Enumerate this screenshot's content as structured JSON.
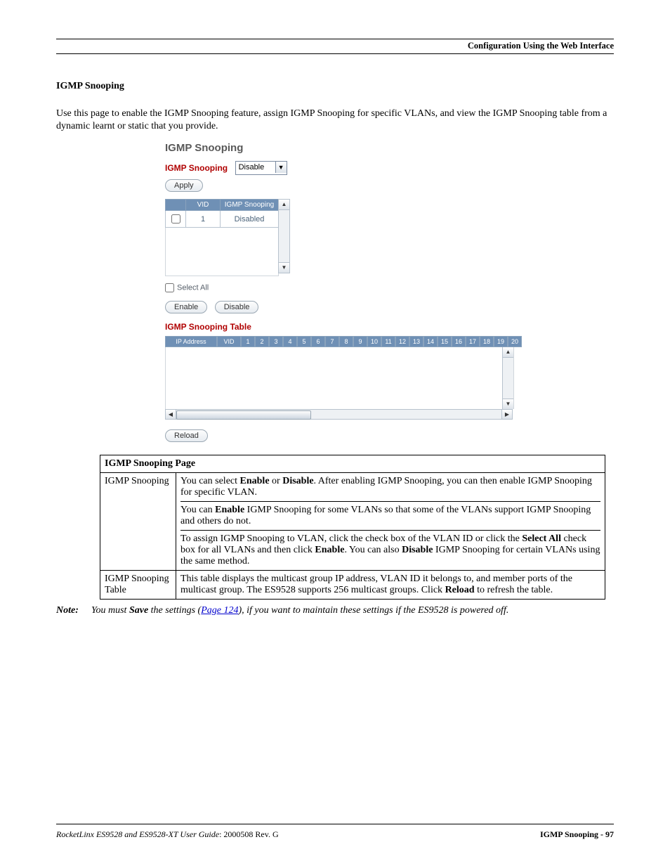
{
  "header": {
    "running": "Configuration Using the Web Interface"
  },
  "section": {
    "title": "IGMP Snooping",
    "intro": "Use this page to enable the IGMP Snooping feature, assign IGMP Snooping for specific VLANs, and view the IGMP Snooping table from a dynamic learnt or static that you provide."
  },
  "shot": {
    "title": "IGMP Snooping",
    "igmp_label": "IGMP Snooping",
    "dropdown_value": "Disable",
    "apply": "Apply",
    "cols": {
      "vid": "VID",
      "snoop": "IGMP Snooping"
    },
    "row": {
      "vid": "1",
      "state": "Disabled"
    },
    "select_all": "Select All",
    "enable": "Enable",
    "disable": "Disable",
    "table_title": "IGMP Snooping Table",
    "ip": "IP Address",
    "vid": "VID",
    "ports": [
      "1",
      "2",
      "3",
      "4",
      "5",
      "6",
      "7",
      "8",
      "9",
      "10",
      "11",
      "12",
      "13",
      "14",
      "15",
      "16",
      "17",
      "18",
      "19",
      "20"
    ],
    "reload": "Reload"
  },
  "desc": {
    "title": "IGMP Snooping Page",
    "rows": [
      {
        "name": "IGMP Snooping",
        "p1a": "You can select ",
        "p1b": "Enable",
        "p1c": " or ",
        "p1d": "Disable",
        "p1e": ". After enabling IGMP Snooping, you can then enable IGMP Snooping for specific VLAN.",
        "p2a": "You can ",
        "p2b": "Enable",
        "p2c": " IGMP Snooping for some VLANs so that some of the VLANs support IGMP Snooping and others do not.",
        "p3a": "To assign IGMP Snooping to VLAN, click the check box of the VLAN ID or click the ",
        "p3b": "Select All",
        "p3c": " check box for all VLANs and then click ",
        "p3d": "Enable",
        "p3e": ". You can also ",
        "p3f": "Disable",
        "p3g": " IGMP Snooping for certain VLANs using the same method."
      },
      {
        "name": "IGMP Snooping Table",
        "p1a": "This table displays the multicast group IP address, VLAN ID it belongs to, and member ports of the multicast group. The ES9528 supports 256 multicast groups. Click ",
        "p1b": "Reload",
        "p1c": " to refresh the table."
      }
    ]
  },
  "note": {
    "label": "Note:",
    "a": "You must ",
    "b": "Save",
    "c": " the settings (",
    "link": "Page 124",
    "d": "), if you want to maintain these settings if the ES9528 is powered off."
  },
  "footer": {
    "left_italic": "RocketLinx ES9528 and ES9528-XT User Guide",
    "left_plain": ": 2000508 Rev. G",
    "right": "IGMP Snooping - 97"
  },
  "colors": {
    "header_bg": "#6f90b5",
    "red": "#b00000",
    "grey_title": "#595959"
  }
}
